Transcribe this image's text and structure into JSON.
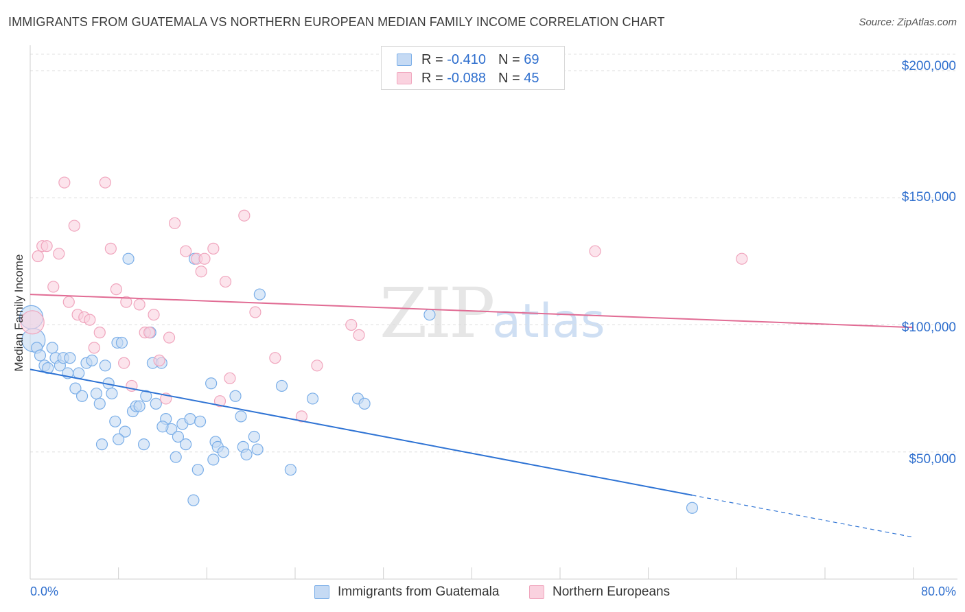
{
  "title": "IMMIGRANTS FROM GUATEMALA VS NORTHERN EUROPEAN MEDIAN FAMILY INCOME CORRELATION CHART",
  "source": "Source: ZipAtlas.com",
  "watermark": {
    "zip": "ZIP",
    "atlas": "atlas"
  },
  "legend_top": {
    "rows": [
      {
        "r_label": "R = ",
        "r_value": "-0.410",
        "n_label": "N = ",
        "n_value": "69"
      },
      {
        "r_label": "R = ",
        "r_value": "-0.088",
        "n_label": "N = ",
        "n_value": "45"
      }
    ]
  },
  "chart_data": {
    "type": "scatter",
    "title": "IMMIGRANTS FROM GUATEMALA VS NORTHERN EUROPEAN MEDIAN FAMILY INCOME CORRELATION CHART",
    "xlabel": "",
    "ylabel": "Median Family Income",
    "xlim": [
      0,
      80
    ],
    "ylim": [
      0,
      210000
    ],
    "x_tick_labels": [
      "0.0%",
      "80.0%"
    ],
    "y_ticks": [
      50000,
      100000,
      150000,
      200000
    ],
    "y_tick_labels": [
      "$50,000",
      "$100,000",
      "$150,000",
      "$200,000"
    ],
    "grid": true,
    "legend_position": "bottom",
    "series": [
      {
        "name": "Immigrants from Guatemala",
        "color": "#7aaee8",
        "fill": "#c5daf4",
        "line_color": "#2e73d4",
        "trend": {
          "x": [
            0,
            60
          ],
          "y": [
            82500,
            33000
          ],
          "dashed_to": [
            80,
            16500
          ]
        },
        "points": [
          [
            0.1,
            103000
          ],
          [
            0.3,
            94000
          ],
          [
            0.6,
            91000
          ],
          [
            0.9,
            88000
          ],
          [
            1.3,
            84000
          ],
          [
            1.6,
            83000
          ],
          [
            2.0,
            91000
          ],
          [
            2.3,
            87000
          ],
          [
            2.7,
            84000
          ],
          [
            3.0,
            87000
          ],
          [
            3.4,
            81000
          ],
          [
            3.6,
            87000
          ],
          [
            4.1,
            75000
          ],
          [
            4.4,
            81000
          ],
          [
            4.7,
            72000
          ],
          [
            5.1,
            85000
          ],
          [
            5.6,
            86000
          ],
          [
            6.0,
            73000
          ],
          [
            6.3,
            69000
          ],
          [
            6.5,
            53000
          ],
          [
            6.8,
            84000
          ],
          [
            7.1,
            77000
          ],
          [
            7.4,
            73000
          ],
          [
            7.7,
            62000
          ],
          [
            7.9,
            93000
          ],
          [
            8.3,
            93000
          ],
          [
            8.6,
            58000
          ],
          [
            8.9,
            126000
          ],
          [
            9.3,
            66000
          ],
          [
            9.6,
            68000
          ],
          [
            9.9,
            68000
          ],
          [
            10.3,
            53000
          ],
          [
            10.5,
            72000
          ],
          [
            10.9,
            97000
          ],
          [
            11.1,
            85000
          ],
          [
            11.4,
            69000
          ],
          [
            11.9,
            85000
          ],
          [
            12.3,
            63000
          ],
          [
            12.8,
            59000
          ],
          [
            13.2,
            48000
          ],
          [
            13.4,
            56000
          ],
          [
            13.8,
            61000
          ],
          [
            14.1,
            53000
          ],
          [
            14.5,
            63000
          ],
          [
            14.9,
            126000
          ],
          [
            15.2,
            43000
          ],
          [
            15.4,
            62000
          ],
          [
            16.4,
            77000
          ],
          [
            16.6,
            47000
          ],
          [
            16.8,
            54000
          ],
          [
            17.0,
            52000
          ],
          [
            17.5,
            50000
          ],
          [
            18.6,
            72000
          ],
          [
            19.1,
            64000
          ],
          [
            19.3,
            52000
          ],
          [
            19.6,
            49000
          ],
          [
            20.3,
            56000
          ],
          [
            20.6,
            51000
          ],
          [
            20.8,
            112000
          ],
          [
            22.8,
            76000
          ],
          [
            23.6,
            43000
          ],
          [
            25.6,
            71000
          ],
          [
            29.7,
            71000
          ],
          [
            30.3,
            69000
          ],
          [
            36.2,
            104000
          ],
          [
            14.8,
            31000
          ],
          [
            60.0,
            28000
          ],
          [
            8.0,
            55000
          ],
          [
            12.0,
            60000
          ]
        ]
      },
      {
        "name": "Northern Europeans",
        "color": "#f0a5bd",
        "fill": "#fad2df",
        "line_color": "#e16c94",
        "trend": {
          "x": [
            0,
            80
          ],
          "y": [
            112000,
            99000
          ]
        },
        "points": [
          [
            0.2,
            101000
          ],
          [
            0.7,
            127000
          ],
          [
            1.1,
            131000
          ],
          [
            1.5,
            131000
          ],
          [
            2.1,
            115000
          ],
          [
            2.6,
            128000
          ],
          [
            3.1,
            156000
          ],
          [
            3.5,
            109000
          ],
          [
            4.0,
            139000
          ],
          [
            4.3,
            104000
          ],
          [
            4.9,
            103000
          ],
          [
            5.4,
            102000
          ],
          [
            5.8,
            91000
          ],
          [
            6.3,
            97000
          ],
          [
            6.8,
            156000
          ],
          [
            7.3,
            130000
          ],
          [
            7.8,
            114000
          ],
          [
            8.5,
            85000
          ],
          [
            8.7,
            109000
          ],
          [
            9.2,
            76000
          ],
          [
            9.9,
            108000
          ],
          [
            10.4,
            97000
          ],
          [
            10.8,
            97000
          ],
          [
            11.2,
            104000
          ],
          [
            11.7,
            86000
          ],
          [
            12.3,
            71000
          ],
          [
            12.6,
            95000
          ],
          [
            13.1,
            140000
          ],
          [
            14.1,
            129000
          ],
          [
            15.1,
            126000
          ],
          [
            15.5,
            121000
          ],
          [
            15.8,
            126000
          ],
          [
            16.6,
            130000
          ],
          [
            17.2,
            70000
          ],
          [
            17.7,
            117000
          ],
          [
            18.1,
            79000
          ],
          [
            19.4,
            143000
          ],
          [
            20.4,
            105000
          ],
          [
            22.2,
            87000
          ],
          [
            24.6,
            64000
          ],
          [
            26.0,
            84000
          ],
          [
            29.1,
            100000
          ],
          [
            29.8,
            96000
          ],
          [
            51.2,
            129000
          ],
          [
            64.5,
            126000
          ]
        ]
      }
    ]
  },
  "axes": {
    "x_left_label": "0.0%",
    "x_right_label": "80.0%",
    "y_labels": [
      "$200,000",
      "$150,000",
      "$100,000",
      "$50,000"
    ],
    "ylabel": "Median Family Income"
  },
  "legend_bottom": [
    {
      "label": "Immigrants from Guatemala"
    },
    {
      "label": "Northern Europeans"
    }
  ]
}
